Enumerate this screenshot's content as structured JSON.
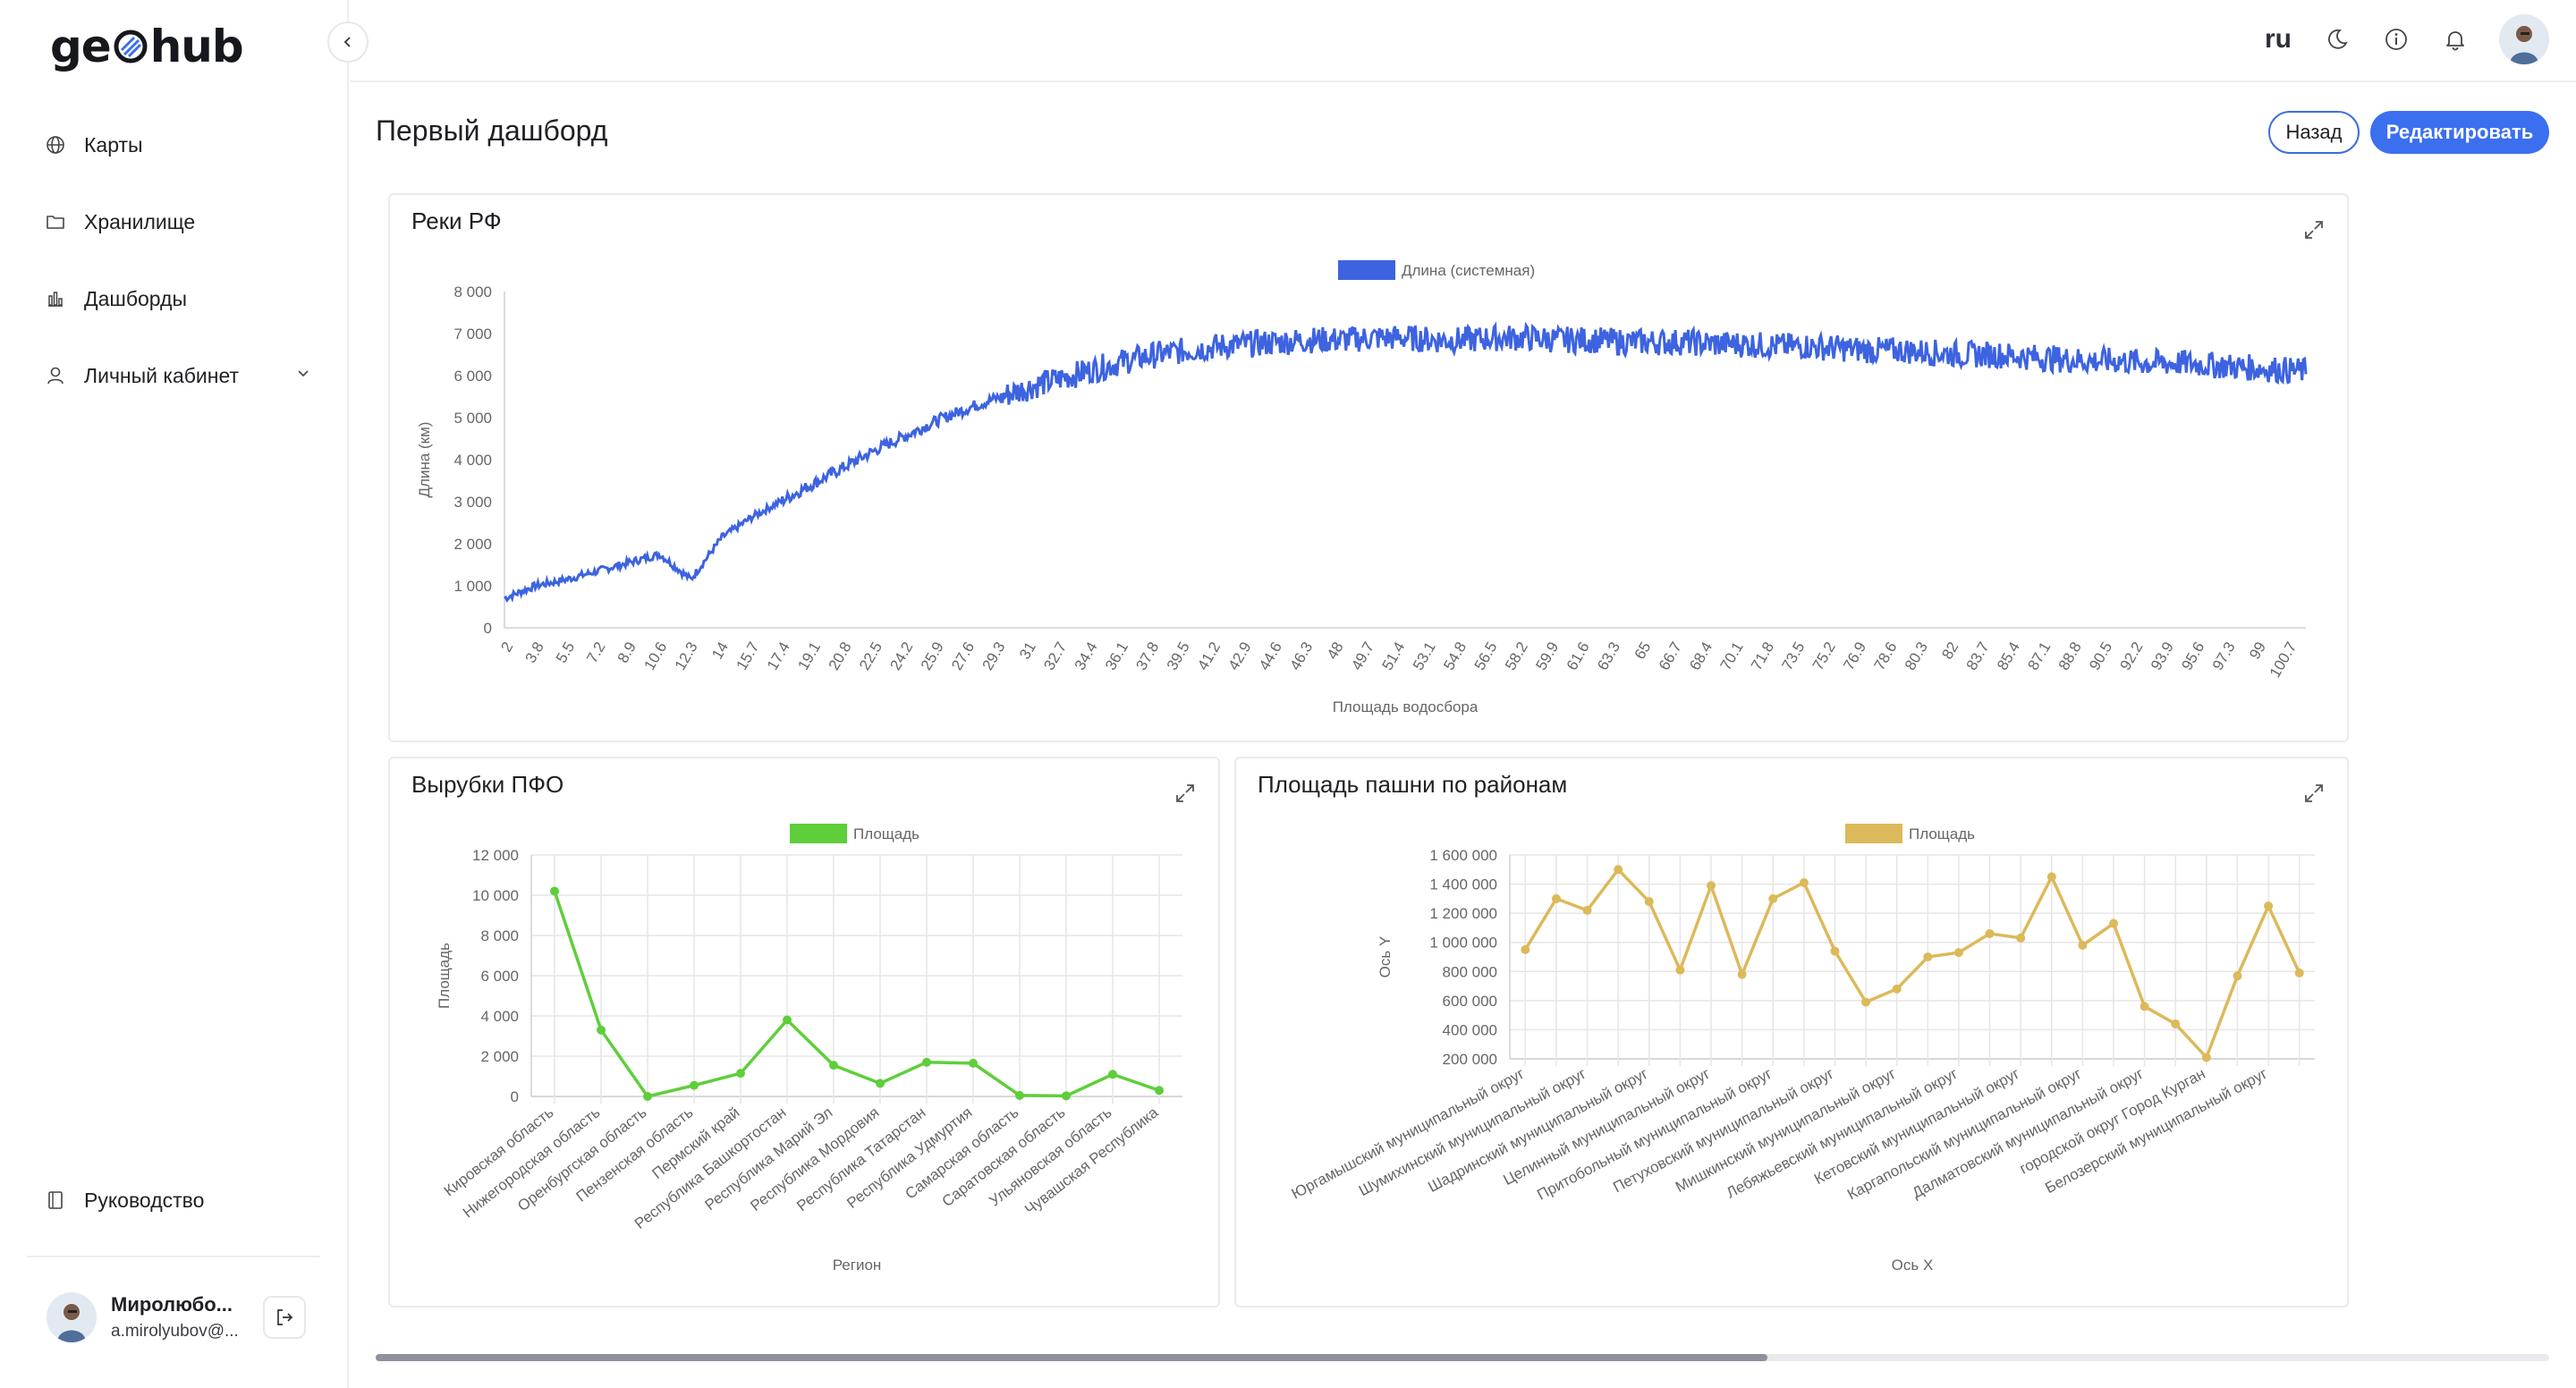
{
  "app": {
    "logo_left": "ge",
    "logo_right": "hub"
  },
  "sidebar": {
    "items": [
      {
        "label": "Карты",
        "icon": "globe-icon"
      },
      {
        "label": "Хранилище",
        "icon": "folder-icon"
      },
      {
        "label": "Дашборды",
        "icon": "chart-icon"
      },
      {
        "label": "Личный кабинет",
        "icon": "user-icon"
      }
    ],
    "guide_label": "Руководство",
    "user_name": "Миролюбо...",
    "user_email": "a.mirolyubov@..."
  },
  "header": {
    "lang": "ru"
  },
  "page": {
    "title": "Первый дашборд",
    "back_label": "Назад",
    "edit_label": "Редактировать"
  },
  "colors": {
    "accent": "#3b6ff0",
    "rivers": "#3d63e0",
    "cuts": "#5fce3b",
    "arable": "#dcb95a"
  },
  "chart_data": [
    {
      "type": "line",
      "title": "Реки РФ",
      "legend": "Длина (системная)",
      "xlabel": "Площадь водосбора",
      "ylabel": "Длина (км)",
      "ylim": [
        0,
        8000
      ],
      "yticks": [
        "0",
        "1 000",
        "2 000",
        "3 000",
        "4 000",
        "5 000",
        "6 000",
        "7 000",
        "8 000"
      ],
      "categories": [
        "2",
        "3.8",
        "5.5",
        "7.2",
        "8.9",
        "10.6",
        "12.3",
        "14",
        "15.7",
        "17.4",
        "19.1",
        "20.8",
        "22.5",
        "24.2",
        "25.9",
        "27.6",
        "29.3",
        "31",
        "32.7",
        "34.4",
        "36.1",
        "37.8",
        "39.5",
        "41.2",
        "42.9",
        "44.6",
        "46.3",
        "48",
        "49.7",
        "51.4",
        "53.1",
        "54.8",
        "56.5",
        "58.2",
        "59.9",
        "61.6",
        "63.3",
        "65",
        "66.7",
        "68.4",
        "70.1",
        "71.8",
        "73.5",
        "75.2",
        "76.9",
        "78.6",
        "80.3",
        "82",
        "83.7",
        "85.4",
        "87.1",
        "88.8",
        "90.5",
        "92.2",
        "93.9",
        "95.6",
        "97.3",
        "99",
        "100.7"
      ],
      "values": [
        700,
        1000,
        1150,
        1350,
        1550,
        1750,
        1150,
        2150,
        2650,
        3050,
        3450,
        3850,
        4250,
        4600,
        4950,
        5250,
        5500,
        5750,
        5950,
        6150,
        6350,
        6500,
        6600,
        6700,
        6750,
        6800,
        6850,
        6850,
        6900,
        6900,
        6850,
        6850,
        6900,
        6900,
        6850,
        6850,
        6800,
        6800,
        6800,
        6750,
        6750,
        6700,
        6700,
        6650,
        6600,
        6600,
        6550,
        6500,
        6500,
        6450,
        6400,
        6350,
        6350,
        6300,
        6300,
        6250,
        6200,
        6150,
        6100
      ]
    },
    {
      "type": "line",
      "title": "Вырубки ПФО",
      "legend": "Площадь",
      "xlabel": "Регион",
      "ylabel": "Площадь",
      "ylim": [
        0,
        12000
      ],
      "yticks": [
        "0",
        "2 000",
        "4 000",
        "6 000",
        "8 000",
        "10 000",
        "12 000"
      ],
      "categories": [
        "Кировская область",
        "Нижегородская область",
        "Оренбургская область",
        "Пензенская область",
        "Пермский край",
        "Республика Башкортостан",
        "Республика Марий Эл",
        "Республика Мордовия",
        "Республика Татарстан",
        "Республика Удмуртия",
        "Самарская область",
        "Саратовская область",
        "Ульяновская область",
        "Чувашская Республика"
      ],
      "values": [
        10200,
        3300,
        0,
        550,
        1150,
        3800,
        1550,
        650,
        1700,
        1650,
        50,
        30,
        1100,
        300
      ]
    },
    {
      "type": "line",
      "title": "Площадь пашни по районам",
      "legend": "Площадь",
      "xlabel": "Ось X",
      "ylabel": "Ось Y",
      "ylim": [
        200000,
        1600000
      ],
      "yticks": [
        "200 000",
        "400 000",
        "600 000",
        "800 000",
        "1 000 000",
        "1 200 000",
        "1 400 000",
        "1 600 000"
      ],
      "categories": [
        "Юргамышский муниципальный округ",
        "",
        "Шумихинский муниципальный округ",
        "",
        "Шадринский муниципальный округ",
        "",
        "Целинный муниципальный округ",
        "",
        "Притобольный муниципальный округ",
        "",
        "Петуховский муниципальный округ",
        "",
        "Мишкинский муниципальный округ",
        "",
        "Лебяжьевский муниципальный округ",
        "",
        "Кетовский муниципальный округ",
        "",
        "Каргапольский муниципальный округ",
        "",
        "Далматовский муниципальный округ",
        "",
        "городской округ Город Курган",
        "",
        "Белозерский муниципальный округ",
        ""
      ],
      "values": [
        950000,
        1300000,
        1220000,
        1500000,
        1280000,
        810000,
        1390000,
        780000,
        1300000,
        1410000,
        940000,
        590000,
        680000,
        900000,
        930000,
        1060000,
        1030000,
        1450000,
        980000,
        1130000,
        560000,
        440000,
        210000,
        770000,
        1250000,
        790000
      ]
    }
  ]
}
